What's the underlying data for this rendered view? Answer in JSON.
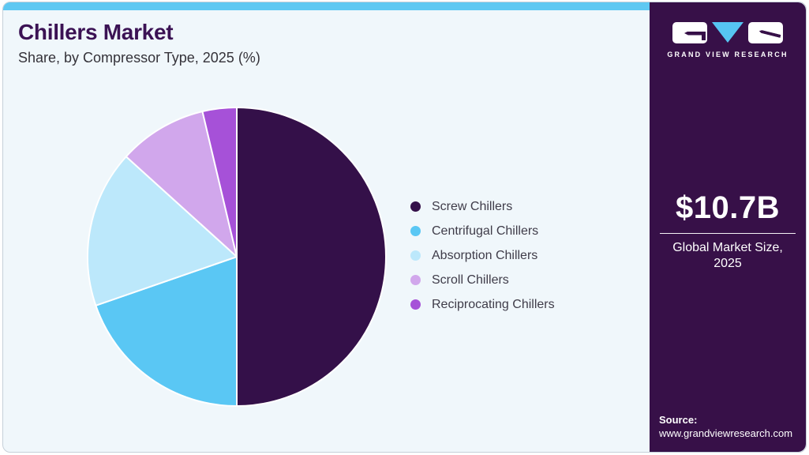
{
  "header": {
    "title": "Chillers Market",
    "subtitle": "Share, by Compressor Type, 2025 (%)"
  },
  "brand": {
    "name": "GRAND VIEW RESEARCH"
  },
  "panel": {
    "market_size": "$10.7B",
    "market_size_label_line1": "Global Market Size,",
    "market_size_label_line2": "2025",
    "source_label": "Source:",
    "source_url": "www.grandviewresearch.com"
  },
  "colors": {
    "accent_cyan": "#5ec8f2",
    "panel_purple": "#371048",
    "card_background": "#f0f7fb",
    "title_purple": "#3b1254",
    "separator_white": "#ffffff"
  },
  "chart_data": {
    "type": "pie",
    "title": "Chillers Market Share, by Compressor Type, 2025 (%)",
    "unit": "%",
    "categories": [
      "Screw Chillers",
      "Centrifugal Chillers",
      "Absorption Chillers",
      "Scroll Chillers",
      "Reciprocating Chillers"
    ],
    "values": [
      50.0,
      19.7,
      17.0,
      9.6,
      3.7
    ],
    "colors": [
      "#341049",
      "#5ac7f4",
      "#bce8fb",
      "#d1a7ec",
      "#a651d8"
    ],
    "start_angle_deg": 0,
    "direction": "clockwise",
    "legend_position": "right",
    "grid": false
  }
}
